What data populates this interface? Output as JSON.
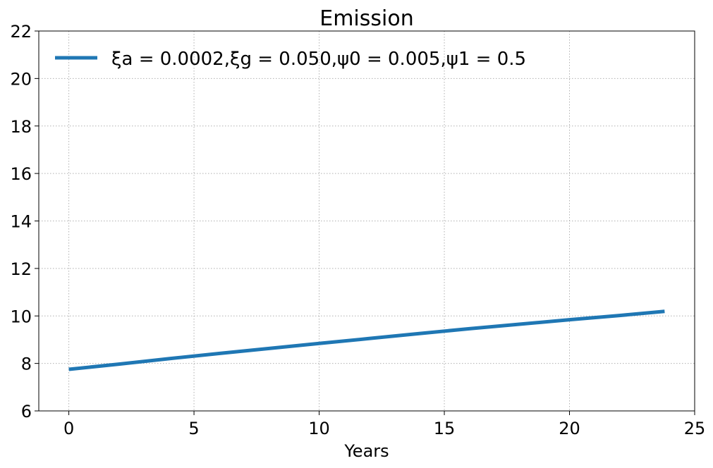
{
  "chart_data": {
    "type": "line",
    "title": "Emission",
    "xlabel": "Years",
    "ylabel": "",
    "xlim": [
      -1.2,
      25
    ],
    "ylim": [
      6,
      22
    ],
    "xticks": [
      0,
      5,
      10,
      15,
      20,
      25
    ],
    "yticks": [
      6,
      8,
      10,
      12,
      14,
      16,
      18,
      20,
      22
    ],
    "grid": true,
    "legend_position": "top-left",
    "series": [
      {
        "name": "ξa = 0.0002,ξg = 0.050,ψ0 = 0.005,ψ1 = 0.5",
        "color": "#1f77b4",
        "x": [
          0,
          2,
          4,
          6,
          8,
          10,
          12,
          14,
          16,
          18,
          20,
          22,
          23.8
        ],
        "y": [
          7.75,
          7.97,
          8.2,
          8.42,
          8.63,
          8.84,
          9.05,
          9.26,
          9.46,
          9.65,
          9.84,
          10.02,
          10.19
        ]
      }
    ]
  }
}
